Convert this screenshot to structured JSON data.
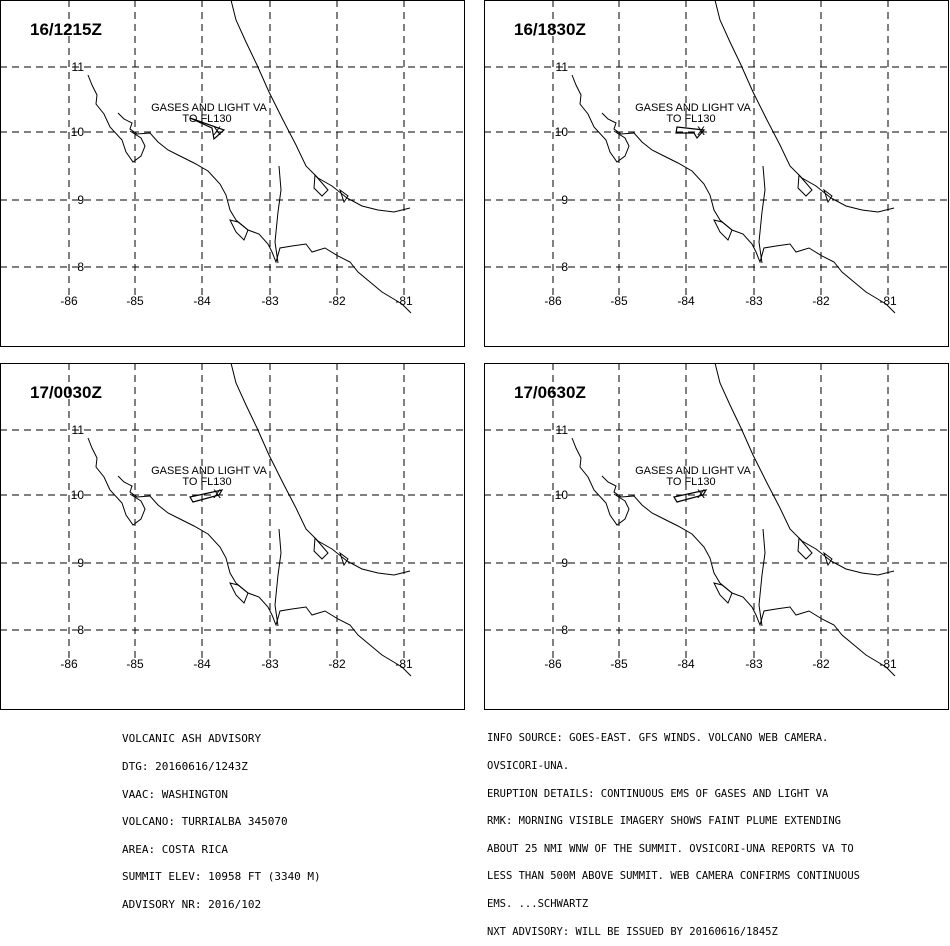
{
  "panels": [
    {
      "time": "16/1215Z",
      "arrow": "east"
    },
    {
      "time": "16/1830Z",
      "arrow": "west"
    },
    {
      "time": "17/0030Z",
      "arrow": "southwest"
    },
    {
      "time": "17/0630Z",
      "arrow": "southwest"
    }
  ],
  "map": {
    "lon_labels": [
      "-86",
      "-85",
      "-84",
      "-83",
      "-82",
      "-81"
    ],
    "lat_labels": [
      "11",
      "10",
      "9",
      "8"
    ],
    "annotation_line1": "GASES AND LIGHT VA",
    "annotation_line2": "TO FL130",
    "volcano_marker": "X",
    "line_color": "#000000"
  },
  "advisory_left": [
    "VOLCANIC ASH ADVISORY",
    "DTG: 20160616/1243Z",
    "VAAC: WASHINGTON",
    "VOLCANO: TURRIALBA 345070",
    "AREA: COSTA RICA",
    "SUMMIT ELEV: 10958 FT (3340 M)",
    "ADVISORY NR: 2016/102"
  ],
  "advisory_right": [
    "INFO SOURCE: GOES-EAST. GFS WINDS. VOLCANO WEB CAMERA.",
    "OVSICORI-UNA.",
    "ERUPTION DETAILS: CONTINUOUS EMS OF GASES AND LIGHT VA",
    "RMK: MORNING VISIBLE IMAGERY SHOWS FAINT PLUME EXTENDING",
    "ABOUT 25 NMI WNW OF THE SUMMIT. OVSICORI-UNA REPORTS VA TO",
    "LESS THAN 500M ABOVE SUMMIT. WEB CAMERA CONFIRMS CONTINUOUS",
    "EMS. ...SCHWARTZ",
    "NXT ADVISORY: WILL BE ISSUED BY 20160616/1845Z"
  ]
}
